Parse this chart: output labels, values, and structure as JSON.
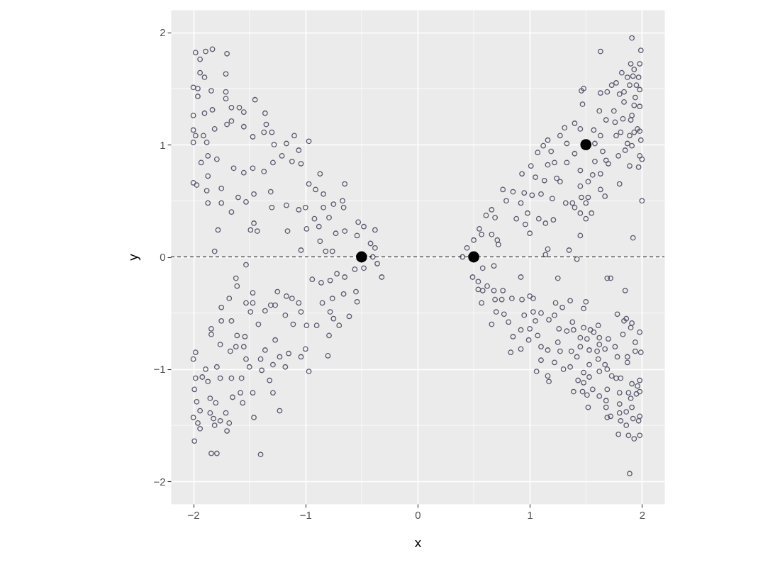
{
  "chart_data": {
    "type": "scatter",
    "xlabel": "x",
    "ylabel": "y",
    "xlim": [
      -2.2,
      2.2
    ],
    "ylim": [
      -2.2,
      2.2
    ],
    "xticks": [
      {
        "value": -2,
        "label": "−2"
      },
      {
        "value": -1,
        "label": "−1"
      },
      0,
      1,
      2
    ],
    "yticks": [
      {
        "value": -2,
        "label": "−2"
      },
      {
        "value": -1,
        "label": "−1"
      },
      0,
      1,
      2
    ],
    "grid": true,
    "marker": "circle",
    "ref_lines": [
      {
        "axis": "y",
        "value": 0,
        "color": "#000000",
        "line_style": "dashed"
      }
    ],
    "series": [
      {
        "color": "#5a596e",
        "x": [
          -1.98,
          -1.89,
          -1.83,
          -1.7,
          -1.94,
          -1.71,
          -1.94,
          -1.9,
          -2.0,
          -1.96,
          -1.96,
          -1.84,
          -1.71,
          -1.71,
          -1.9,
          -1.83,
          -2.0,
          -2.0,
          -2.0,
          -1.98,
          -1.91,
          -1.88,
          -1.66,
          -1.59,
          -1.55,
          -1.45,
          -1.36,
          -1.35,
          -1.37,
          -1.3,
          -1.55,
          -1.7,
          -1.66,
          -1.81,
          -1.47,
          -1.1,
          -0.97,
          -1.17,
          -1.28,
          -1.06,
          -1.87,
          -1.93,
          -1.79,
          -1.64,
          -1.55,
          -1.47,
          -1.37,
          -1.29,
          -1.21,
          -1.12,
          -1.04,
          -2.0,
          -1.97,
          -1.87,
          -1.87,
          -1.75,
          -1.88,
          -1.75,
          -1.6,
          -1.53,
          -1.66,
          -1.46,
          -1.31,
          -1.17,
          -1.3,
          -1.06,
          -1.0,
          -0.97,
          -0.87,
          -0.84,
          -0.91,
          -0.65,
          -0.67,
          -0.66,
          -0.75,
          -0.84,
          -0.79,
          -0.92,
          -0.88,
          -0.73,
          -0.65,
          -0.54,
          -0.48,
          -0.53,
          -0.38,
          -0.99,
          -1.16,
          -1.49,
          -1.46,
          -1.43,
          -1.78,
          -1.81,
          -1.04,
          -0.87,
          -0.82,
          -0.76,
          -0.42,
          -0.38,
          -0.4
        ],
        "values": [
          1.82,
          1.83,
          1.85,
          1.81,
          1.76,
          1.63,
          1.64,
          1.6,
          1.51,
          1.5,
          1.43,
          1.48,
          1.47,
          1.41,
          1.28,
          1.31,
          1.26,
          1.13,
          1.02,
          1.08,
          1.08,
          1.02,
          1.33,
          1.33,
          1.29,
          1.4,
          1.28,
          1.18,
          1.11,
          1.11,
          1.16,
          1.18,
          1.21,
          1.14,
          1.07,
          1.08,
          1.03,
          1.01,
          1.0,
          0.95,
          0.9,
          0.84,
          0.87,
          0.79,
          0.75,
          0.79,
          0.76,
          0.84,
          0.9,
          0.85,
          0.83,
          0.66,
          0.64,
          0.72,
          0.48,
          0.48,
          0.59,
          0.61,
          0.53,
          0.49,
          0.4,
          0.56,
          0.58,
          0.46,
          0.44,
          0.42,
          0.44,
          0.65,
          0.74,
          0.56,
          0.6,
          0.65,
          0.5,
          0.44,
          0.47,
          0.44,
          0.35,
          0.34,
          0.27,
          0.21,
          0.23,
          0.19,
          0.27,
          0.31,
          0.24,
          0.25,
          0.23,
          0.24,
          0.3,
          0.23,
          0.24,
          0.05,
          0.06,
          0.14,
          0.05,
          0.05,
          0.12,
          0.08,
          0.0
        ]
      },
      {
        "color": "#5a596e",
        "x": [
          -1.53,
          -1.62,
          -1.61,
          -1.47,
          -1.68,
          -1.75,
          -1.53,
          -1.47,
          -1.49,
          -1.36,
          -1.31,
          -1.27,
          -1.25,
          -1.17,
          -1.12,
          -1.06,
          -0.94,
          -0.86,
          -0.78,
          -0.72,
          -0.65,
          -0.56,
          -0.48,
          -0.36,
          -0.32,
          -0.54,
          -0.61,
          -0.55,
          -0.66,
          -0.76,
          -0.85,
          -0.8,
          -0.78,
          -0.75,
          -0.7,
          -0.79,
          -0.9,
          -0.99,
          -1.04,
          -1.11,
          -1.18,
          -0.97,
          -1.04,
          -1.0,
          -1.15,
          -1.27,
          -1.36,
          -1.4,
          -1.23,
          -1.29,
          -1.18,
          -1.32,
          -1.42,
          -1.54,
          -1.55,
          -1.62,
          -1.67,
          -1.76,
          -1.84,
          -1.84,
          -1.75,
          -1.66,
          -1.61,
          -1.53,
          -1.5,
          -1.57,
          -1.66,
          -1.76,
          -1.79,
          -1.89,
          -1.98,
          -2.0,
          -1.99,
          -1.92,
          -1.98,
          -1.87,
          -1.97,
          -1.94,
          -2.0,
          -1.96,
          -1.94,
          -1.85,
          -1.8,
          -1.85,
          -1.82,
          -1.76,
          -1.71,
          -1.7,
          -1.68,
          -1.81,
          -1.99,
          -1.84,
          -1.79,
          -1.4,
          -1.46,
          -1.23,
          -1.29,
          -1.47,
          -1.65,
          -1.56,
          -1.58,
          -1.39
        ],
        "values": [
          -0.07,
          -0.19,
          -0.26,
          -0.32,
          -0.37,
          -0.45,
          -0.41,
          -0.41,
          -0.49,
          -0.48,
          -0.43,
          -0.43,
          -0.31,
          -0.35,
          -0.37,
          -0.41,
          -0.2,
          -0.23,
          -0.21,
          -0.15,
          -0.18,
          -0.11,
          -0.1,
          -0.06,
          -0.18,
          -0.4,
          -0.53,
          -0.31,
          -0.33,
          -0.37,
          -0.41,
          -0.88,
          -0.49,
          -0.55,
          -0.61,
          -0.7,
          -0.61,
          -0.61,
          -0.49,
          -0.6,
          -0.52,
          -1.02,
          -0.89,
          -0.82,
          -0.86,
          -0.74,
          -0.83,
          -0.91,
          -0.89,
          -0.96,
          -0.98,
          -1.1,
          -0.6,
          -0.71,
          -0.8,
          -0.8,
          -0.84,
          -0.78,
          -0.64,
          -0.69,
          -0.57,
          -0.57,
          -0.7,
          -0.91,
          -0.98,
          -1.08,
          -1.08,
          -1.08,
          -0.98,
          -1.0,
          -0.85,
          -0.91,
          -1.18,
          -1.07,
          -1.08,
          -1.11,
          -1.29,
          -1.37,
          -1.43,
          -1.48,
          -1.53,
          -1.26,
          -1.3,
          -1.39,
          -1.44,
          -1.46,
          -1.39,
          -1.55,
          -1.48,
          -1.5,
          -1.64,
          -1.75,
          -1.75,
          -1.76,
          -1.43,
          -1.37,
          -1.21,
          -1.21,
          -1.25,
          -1.3,
          -1.21,
          -1.01
        ]
      },
      {
        "color": "#5a596e",
        "x": [
          0.4,
          0.44,
          0.5,
          0.55,
          0.61,
          0.57,
          0.66,
          0.72,
          0.71,
          0.66,
          0.69,
          0.76,
          0.79,
          0.85,
          0.92,
          0.95,
          0.88,
          0.96,
          1.0,
          0.98,
          1.01,
          0.93,
          1.02,
          1.05,
          1.1,
          1.08,
          1.14,
          1.21,
          1.16,
          1.14,
          1.35,
          1.45,
          1.13,
          1.2,
          1.07,
          1.12,
          1.16,
          1.19,
          1.16,
          1.22,
          1.24,
          1.27,
          1.27,
          1.31,
          1.33,
          1.33,
          1.32,
          1.38,
          1.4,
          1.4,
          1.4,
          1.45,
          1.46,
          1.48,
          1.47,
          1.45,
          1.45,
          1.46,
          1.52,
          1.55,
          1.5,
          1.45,
          1.5,
          1.52,
          1.56,
          1.58,
          1.63,
          1.67,
          1.63,
          1.63,
          1.63,
          1.69,
          1.62,
          1.68,
          1.57,
          1.63,
          1.58,
          1.65,
          1.68,
          1.7,
          1.79,
          1.8,
          1.76,
          1.75,
          1.73,
          1.77,
          1.82,
          1.87,
          1.91,
          1.99,
          1.9,
          1.98,
          1.93,
          1.97,
          1.92,
          1.98,
          1.95,
          1.89,
          1.84,
          1.8,
          1.84,
          1.94,
          1.98,
          1.93,
          1.83,
          1.9,
          1.91,
          1.93,
          1.98,
          1.96,
          1.89,
          1.87,
          1.91,
          1.99,
          1.98,
          2.0,
          1.89,
          1.97,
          2.0,
          1.92,
          1.85,
          1.81,
          1.77
        ],
        "values": [
          0.0,
          0.08,
          0.15,
          0.25,
          0.37,
          0.2,
          0.2,
          0.11,
          0.15,
          0.42,
          0.35,
          0.6,
          0.5,
          0.58,
          0.48,
          0.57,
          0.34,
          0.29,
          0.21,
          0.39,
          0.81,
          0.74,
          0.55,
          0.71,
          0.56,
          0.34,
          0.3,
          0.33,
          0.07,
          0.02,
          0.06,
          0.19,
          0.68,
          0.52,
          0.93,
          0.99,
          1.04,
          0.94,
          0.82,
          0.84,
          0.7,
          0.67,
          1.08,
          1.15,
          1.01,
          0.84,
          0.48,
          0.48,
          0.44,
          0.92,
          1.19,
          1.14,
          1.48,
          1.5,
          1.36,
          0.77,
          0.63,
          0.53,
          0.53,
          0.39,
          0.34,
          0.39,
          0.48,
          0.67,
          0.73,
          0.85,
          0.6,
          0.54,
          0.74,
          1.83,
          1.46,
          1.47,
          1.3,
          1.22,
          1.13,
          1.08,
          1.01,
          0.94,
          0.86,
          0.83,
          0.9,
          0.65,
          1.2,
          1.3,
          1.53,
          1.55,
          1.64,
          1.6,
          1.95,
          1.84,
          1.72,
          1.72,
          1.67,
          1.6,
          1.61,
          1.49,
          1.53,
          1.53,
          1.47,
          1.45,
          1.38,
          1.42,
          1.34,
          1.35,
          1.23,
          1.22,
          1.26,
          1.11,
          1.12,
          1.14,
          1.08,
          1.01,
          0.99,
          1.04,
          0.9,
          0.87,
          0.81,
          0.8,
          0.5,
          0.17,
          0.95,
          1.11,
          1.08
        ]
      },
      {
        "color": "#5a596e",
        "x": [
          0.58,
          0.68,
          0.49,
          0.54,
          0.54,
          0.58,
          0.62,
          0.57,
          0.68,
          0.76,
          0.92,
          1.25,
          1.42,
          0.69,
          0.75,
          0.7,
          0.66,
          0.84,
          0.93,
          1.0,
          1.03,
          0.77,
          0.81,
          0.85,
          0.83,
          0.92,
          0.92,
          0.95,
          1.0,
          0.99,
          1.07,
          1.03,
          1.05,
          1.1,
          1.17,
          1.22,
          1.23,
          1.29,
          1.36,
          1.5,
          1.48,
          1.69,
          1.72,
          1.85,
          1.1,
          1.16,
          1.1,
          1.06,
          1.16,
          1.17,
          1.22,
          1.26,
          1.25,
          1.27,
          1.33,
          1.38,
          1.39,
          1.37,
          1.42,
          1.36,
          1.3,
          1.45,
          1.48,
          1.45,
          1.51,
          1.54,
          1.57,
          1.61,
          1.62,
          1.53,
          1.6,
          1.62,
          1.67,
          1.7,
          1.76,
          1.78,
          1.87,
          1.94,
          1.99,
          1.83,
          1.94,
          1.98,
          1.78,
          1.84,
          1.86,
          1.91,
          1.9,
          1.87,
          1.61,
          1.67,
          1.69,
          1.62,
          1.53,
          1.53,
          1.48,
          1.43,
          1.48,
          1.47,
          1.39,
          1.51,
          1.52,
          1.56,
          1.62,
          1.68,
          1.68,
          1.69,
          1.72,
          1.69,
          1.73,
          1.77,
          1.81,
          1.8,
          1.8,
          1.8,
          1.86,
          1.91,
          1.9,
          1.88,
          1.95,
          1.98,
          1.91,
          1.96,
          1.98,
          1.81,
          1.86,
          1.92,
          1.98,
          1.97,
          1.79,
          1.88,
          1.93,
          1.98,
          1.89
        ],
        "values": [
          -0.1,
          -0.08,
          -0.18,
          -0.22,
          -0.29,
          -0.3,
          -0.26,
          -0.41,
          -0.3,
          -0.3,
          -0.18,
          -0.19,
          -0.02,
          -0.38,
          -0.38,
          -0.49,
          -0.6,
          -0.37,
          -0.38,
          -0.35,
          -0.37,
          -0.51,
          -0.58,
          -0.71,
          -0.85,
          -0.82,
          -0.65,
          -0.52,
          -0.64,
          -0.74,
          -0.7,
          -0.49,
          -0.57,
          -0.5,
          -0.56,
          -0.52,
          -0.41,
          -0.45,
          -0.39,
          -0.4,
          -0.46,
          -0.19,
          -0.19,
          -0.3,
          -0.8,
          -0.83,
          -0.92,
          -1.02,
          -1.06,
          -1.11,
          -0.94,
          -0.64,
          -0.76,
          -0.84,
          -0.66,
          -0.58,
          -0.65,
          -0.84,
          -0.89,
          -0.98,
          -1.0,
          -0.8,
          -0.63,
          -0.72,
          -0.73,
          -0.65,
          -0.67,
          -0.61,
          -0.72,
          -0.83,
          -0.84,
          -0.78,
          -0.82,
          -0.73,
          -0.8,
          -0.89,
          -0.89,
          -0.84,
          -0.85,
          -0.69,
          -0.76,
          -0.67,
          -0.51,
          -0.57,
          -0.55,
          -0.59,
          -0.63,
          -0.94,
          -0.91,
          -0.96,
          -1.0,
          -1.02,
          -0.96,
          -1.07,
          -1.03,
          -1.1,
          -1.12,
          -1.2,
          -1.2,
          -1.23,
          -1.34,
          -1.18,
          -1.24,
          -1.28,
          -1.34,
          -1.43,
          -1.42,
          -1.18,
          -1.06,
          -1.08,
          -1.08,
          -1.21,
          -1.31,
          -1.39,
          -1.38,
          -1.34,
          -1.26,
          -1.21,
          -1.22,
          -1.2,
          -1.13,
          -1.15,
          -1.1,
          -1.46,
          -1.5,
          -1.44,
          -1.42,
          -1.46,
          -1.58,
          -1.59,
          -1.62,
          -1.59,
          -1.93
        ]
      },
      {
        "color": "#000000",
        "x": [
          -0.5,
          0.5,
          1.5
        ],
        "values": [
          0,
          0,
          1
        ]
      }
    ]
  }
}
